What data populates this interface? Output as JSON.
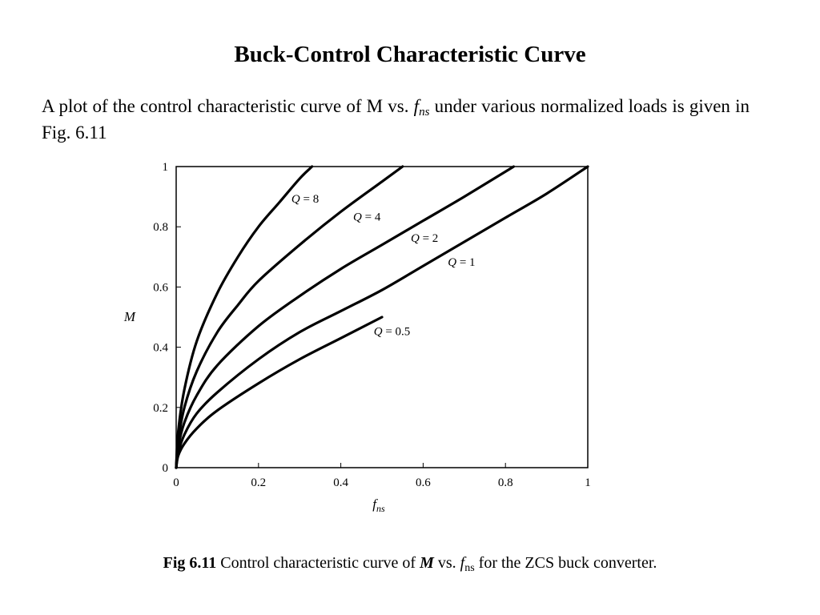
{
  "slide": {
    "title": "Buck-Control Characteristic Curve",
    "intro_text": "A plot of the control characteristic curve of M vs.",
    "intro_f": "f",
    "intro_sub": "ns",
    "intro_rest": "under various normalized loads is given in Fig. 6.11"
  },
  "caption": {
    "fig_number": "Fig 6.11",
    "text1": "Control characteristic curve of",
    "m_symbol": "M",
    "text2": "vs.",
    "f_symbol": "f",
    "f_sub": "ns",
    "text3": "for the ZCS buck converter."
  },
  "chart_data": {
    "type": "line",
    "title": "",
    "xlabel": "f_ns",
    "ylabel": "M",
    "xlim": [
      0,
      1
    ],
    "ylim": [
      0,
      1
    ],
    "grid": false,
    "x_ticks": [
      0,
      0.2,
      0.4,
      0.6,
      0.8,
      1
    ],
    "y_ticks": [
      0,
      0.2,
      0.4,
      0.6,
      0.8,
      1
    ],
    "x_tick_labels": [
      "0",
      "0.2",
      "0.4",
      "0.6",
      "0.8",
      "1"
    ],
    "y_tick_labels": [
      "0",
      "0.2",
      "0.4",
      "0.6",
      "0.8",
      "1"
    ],
    "series": [
      {
        "name": "Q = 8",
        "x": [
          0,
          0.005,
          0.02,
          0.05,
          0.1,
          0.15,
          0.2,
          0.25,
          0.3,
          0.33
        ],
        "y": [
          0,
          0.12,
          0.26,
          0.42,
          0.58,
          0.7,
          0.8,
          0.88,
          0.96,
          1.0
        ]
      },
      {
        "name": "Q = 4",
        "x": [
          0,
          0.005,
          0.02,
          0.05,
          0.1,
          0.15,
          0.2,
          0.3,
          0.4,
          0.5,
          0.55
        ],
        "y": [
          0,
          0.09,
          0.2,
          0.32,
          0.45,
          0.54,
          0.62,
          0.74,
          0.85,
          0.95,
          1.0
        ]
      },
      {
        "name": "Q = 2",
        "x": [
          0,
          0.005,
          0.02,
          0.05,
          0.1,
          0.2,
          0.3,
          0.4,
          0.5,
          0.6,
          0.7,
          0.82
        ],
        "y": [
          0,
          0.07,
          0.15,
          0.24,
          0.34,
          0.47,
          0.57,
          0.66,
          0.74,
          0.82,
          0.9,
          1.0
        ]
      },
      {
        "name": "Q = 1",
        "x": [
          0,
          0.005,
          0.02,
          0.05,
          0.1,
          0.2,
          0.3,
          0.4,
          0.5,
          0.6,
          0.7,
          0.8,
          0.9,
          1.0
        ],
        "y": [
          0,
          0.05,
          0.11,
          0.18,
          0.25,
          0.36,
          0.45,
          0.52,
          0.59,
          0.67,
          0.75,
          0.83,
          0.91,
          1.0
        ]
      },
      {
        "name": "Q = 0.5",
        "x": [
          0,
          0.005,
          0.02,
          0.05,
          0.1,
          0.2,
          0.3,
          0.4,
          0.5
        ],
        "y": [
          0,
          0.04,
          0.08,
          0.13,
          0.19,
          0.28,
          0.36,
          0.43,
          0.5
        ]
      }
    ],
    "curve_labels": [
      {
        "text": "Q = 8",
        "x": 0.28,
        "y": 0.88
      },
      {
        "text": "Q = 4",
        "x": 0.43,
        "y": 0.82
      },
      {
        "text": "Q = 2",
        "x": 0.57,
        "y": 0.75
      },
      {
        "text": "Q = 1",
        "x": 0.66,
        "y": 0.67
      },
      {
        "text": "Q = 0.5",
        "x": 0.48,
        "y": 0.44
      }
    ]
  }
}
